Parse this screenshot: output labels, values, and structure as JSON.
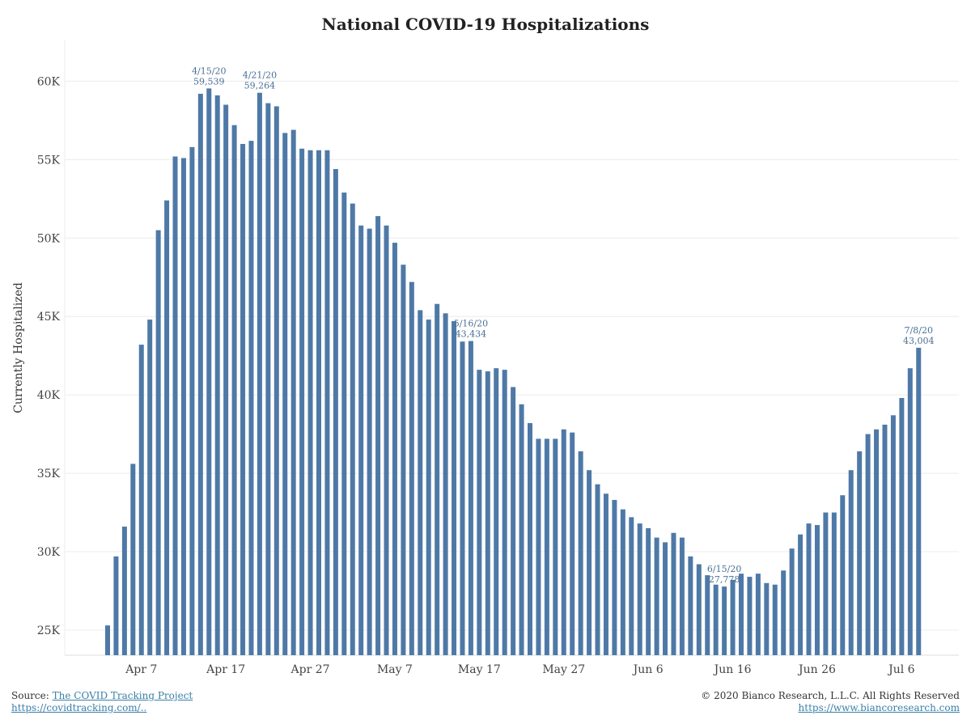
{
  "chart_data": {
    "type": "bar",
    "title": "National COVID-19 Hospitalizations",
    "xlabel": "",
    "ylabel": "Currently Hospitalized",
    "start_date": "2020-04-03",
    "ylim": [
      23.4,
      62.6
    ],
    "yunit": "thousands",
    "yticks": [
      {
        "v": 25,
        "label": "25K"
      },
      {
        "v": 30,
        "label": "30K"
      },
      {
        "v": 35,
        "label": "35K"
      },
      {
        "v": 40,
        "label": "40K"
      },
      {
        "v": 45,
        "label": "45K"
      },
      {
        "v": 50,
        "label": "50K"
      },
      {
        "v": 55,
        "label": "55K"
      },
      {
        "v": 60,
        "label": "60K"
      }
    ],
    "xticks": [
      {
        "i": 4,
        "label": "Apr 7"
      },
      {
        "i": 14,
        "label": "Apr 17"
      },
      {
        "i": 24,
        "label": "Apr 27"
      },
      {
        "i": 34,
        "label": "May 7"
      },
      {
        "i": 44,
        "label": "May 17"
      },
      {
        "i": 54,
        "label": "May 27"
      },
      {
        "i": 64,
        "label": "Jun 6"
      },
      {
        "i": 74,
        "label": "Jun 16"
      },
      {
        "i": 84,
        "label": "Jun 26"
      },
      {
        "i": 94,
        "label": "Jul 6"
      }
    ],
    "grid": true,
    "bar_color": "#4e79a7",
    "values": [
      25.3,
      29.7,
      31.6,
      35.6,
      43.2,
      44.8,
      50.5,
      52.4,
      55.2,
      55.1,
      55.8,
      59.2,
      59.539,
      59.1,
      58.5,
      57.2,
      56.0,
      56.2,
      59.264,
      58.6,
      58.4,
      56.7,
      56.9,
      55.7,
      55.6,
      55.6,
      55.6,
      54.4,
      52.9,
      52.2,
      50.8,
      50.6,
      51.4,
      50.8,
      49.7,
      48.3,
      47.2,
      45.4,
      44.8,
      45.8,
      45.2,
      44.7,
      43.4,
      43.434,
      41.6,
      41.5,
      41.7,
      41.6,
      40.5,
      39.4,
      38.2,
      37.2,
      37.2,
      37.2,
      37.8,
      37.6,
      36.4,
      35.2,
      34.3,
      33.7,
      33.3,
      32.7,
      32.2,
      31.8,
      31.5,
      30.9,
      30.6,
      31.2,
      30.9,
      29.7,
      29.2,
      28.5,
      27.9,
      27.778,
      28.2,
      28.6,
      28.4,
      28.6,
      28.0,
      27.9,
      28.8,
      30.2,
      31.1,
      31.8,
      31.7,
      32.5,
      32.5,
      33.6,
      35.2,
      36.4,
      37.5,
      37.8,
      38.1,
      38.7,
      39.8,
      41.7,
      43.004
    ],
    "annotations": [
      {
        "i": 12,
        "date": "4/15/20",
        "value": "59,539"
      },
      {
        "i": 18,
        "date": "4/21/20",
        "value": "59,264"
      },
      {
        "i": 43,
        "date": "5/16/20",
        "value": "43,434"
      },
      {
        "i": 73,
        "date": "6/15/20",
        "value": "27,778"
      },
      {
        "i": 96,
        "date": "7/8/20",
        "value": "43,004"
      }
    ]
  },
  "footer": {
    "source_label": "Source:",
    "source_link": "The COVID Tracking Project",
    "source_url_text": "https://covidtracking.com/..",
    "copyright": "© 2020 Bianco Research, L.L.C. All Rights Reserved",
    "site_link": "https://www.biancoresearch.com"
  }
}
